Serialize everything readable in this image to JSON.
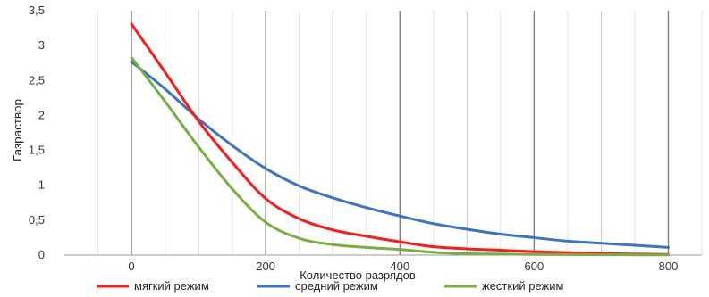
{
  "chart_data": {
    "type": "line",
    "title": "",
    "xlabel": "Количество разрядов",
    "ylabel": "Газраствор",
    "xlim": [
      -100,
      850
    ],
    "ylim": [
      0,
      3.5
    ],
    "x_ticks": [
      0,
      200,
      400,
      600,
      800
    ],
    "x_tick_labels": [
      "0",
      "200",
      "400",
      "600",
      "800"
    ],
    "y_ticks": [
      0,
      0.5,
      1,
      1.5,
      2,
      2.5,
      3,
      3.5
    ],
    "y_tick_labels": [
      "0",
      "0,5",
      "1",
      "1,5",
      "2",
      "2,5",
      "3",
      "3,5"
    ],
    "grid": true,
    "legend_position": "bottom",
    "series": [
      {
        "name": "мягкий режим",
        "color": "#ff1a1a",
        "x": [
          0,
          50,
          100,
          150,
          200,
          250,
          300,
          350,
          400,
          450,
          500,
          550,
          600,
          650,
          700,
          750,
          800
        ],
        "y": [
          3.31,
          2.62,
          1.92,
          1.33,
          0.81,
          0.52,
          0.36,
          0.27,
          0.19,
          0.12,
          0.09,
          0.07,
          0.05,
          0.035,
          0.025,
          0.015,
          0.01
        ]
      },
      {
        "name": "средний режим",
        "color": "#3a74c4",
        "x": [
          0,
          50,
          100,
          150,
          200,
          250,
          300,
          350,
          400,
          450,
          500,
          550,
          600,
          650,
          700,
          750,
          800
        ],
        "y": [
          2.77,
          2.38,
          1.95,
          1.57,
          1.24,
          0.99,
          0.82,
          0.68,
          0.56,
          0.45,
          0.37,
          0.3,
          0.25,
          0.2,
          0.17,
          0.14,
          0.11
        ]
      },
      {
        "name": "жесткий режим",
        "color": "#77b041",
        "x": [
          0,
          50,
          100,
          150,
          200,
          250,
          300,
          350,
          400,
          450,
          500,
          550,
          600,
          650,
          700,
          750,
          800
        ],
        "y": [
          2.83,
          2.2,
          1.55,
          0.95,
          0.47,
          0.24,
          0.15,
          0.11,
          0.08,
          0.04,
          0.02,
          0.015,
          0.01,
          0.008,
          0.005,
          0.004,
          0.003
        ]
      }
    ]
  }
}
